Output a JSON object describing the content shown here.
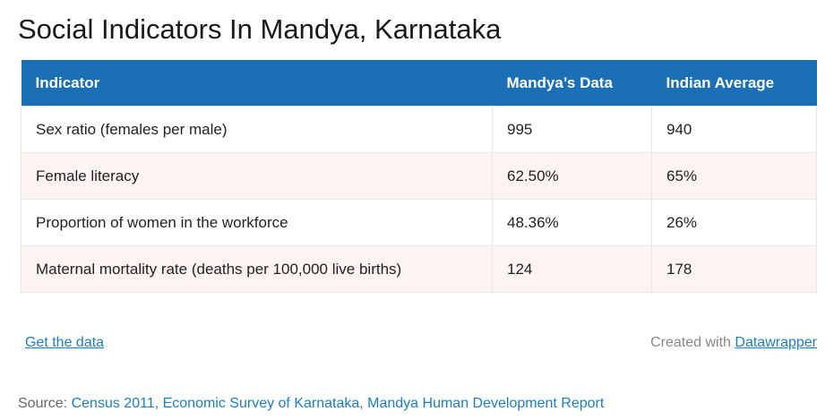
{
  "title": "Social Indicators In Mandya, Karnataka",
  "table": {
    "headers": [
      "Indicator",
      "Mandya’s Data",
      "Indian Average"
    ],
    "rows": [
      [
        "Sex ratio (females per male)",
        "995",
        "940"
      ],
      [
        "Female literacy",
        "62.50%",
        "65%"
      ],
      [
        "Proportion of women in the workforce",
        "48.36%",
        "26%"
      ],
      [
        "Maternal mortality rate (deaths per 100,000 live births)",
        "124",
        "178"
      ]
    ]
  },
  "footer": {
    "get_data": "Get the data",
    "created_with": "Created with",
    "datawrapper": "Datawrapper",
    "source_label": "Source:",
    "source_links": [
      "Census 2011",
      "Economic Survey of Karnataka",
      "Mandya Human Development Report"
    ]
  },
  "colors": {
    "header_bg": "#1b6fb5",
    "alt_row_bg": "#fdf3f3",
    "link": "#1b7ec2"
  }
}
